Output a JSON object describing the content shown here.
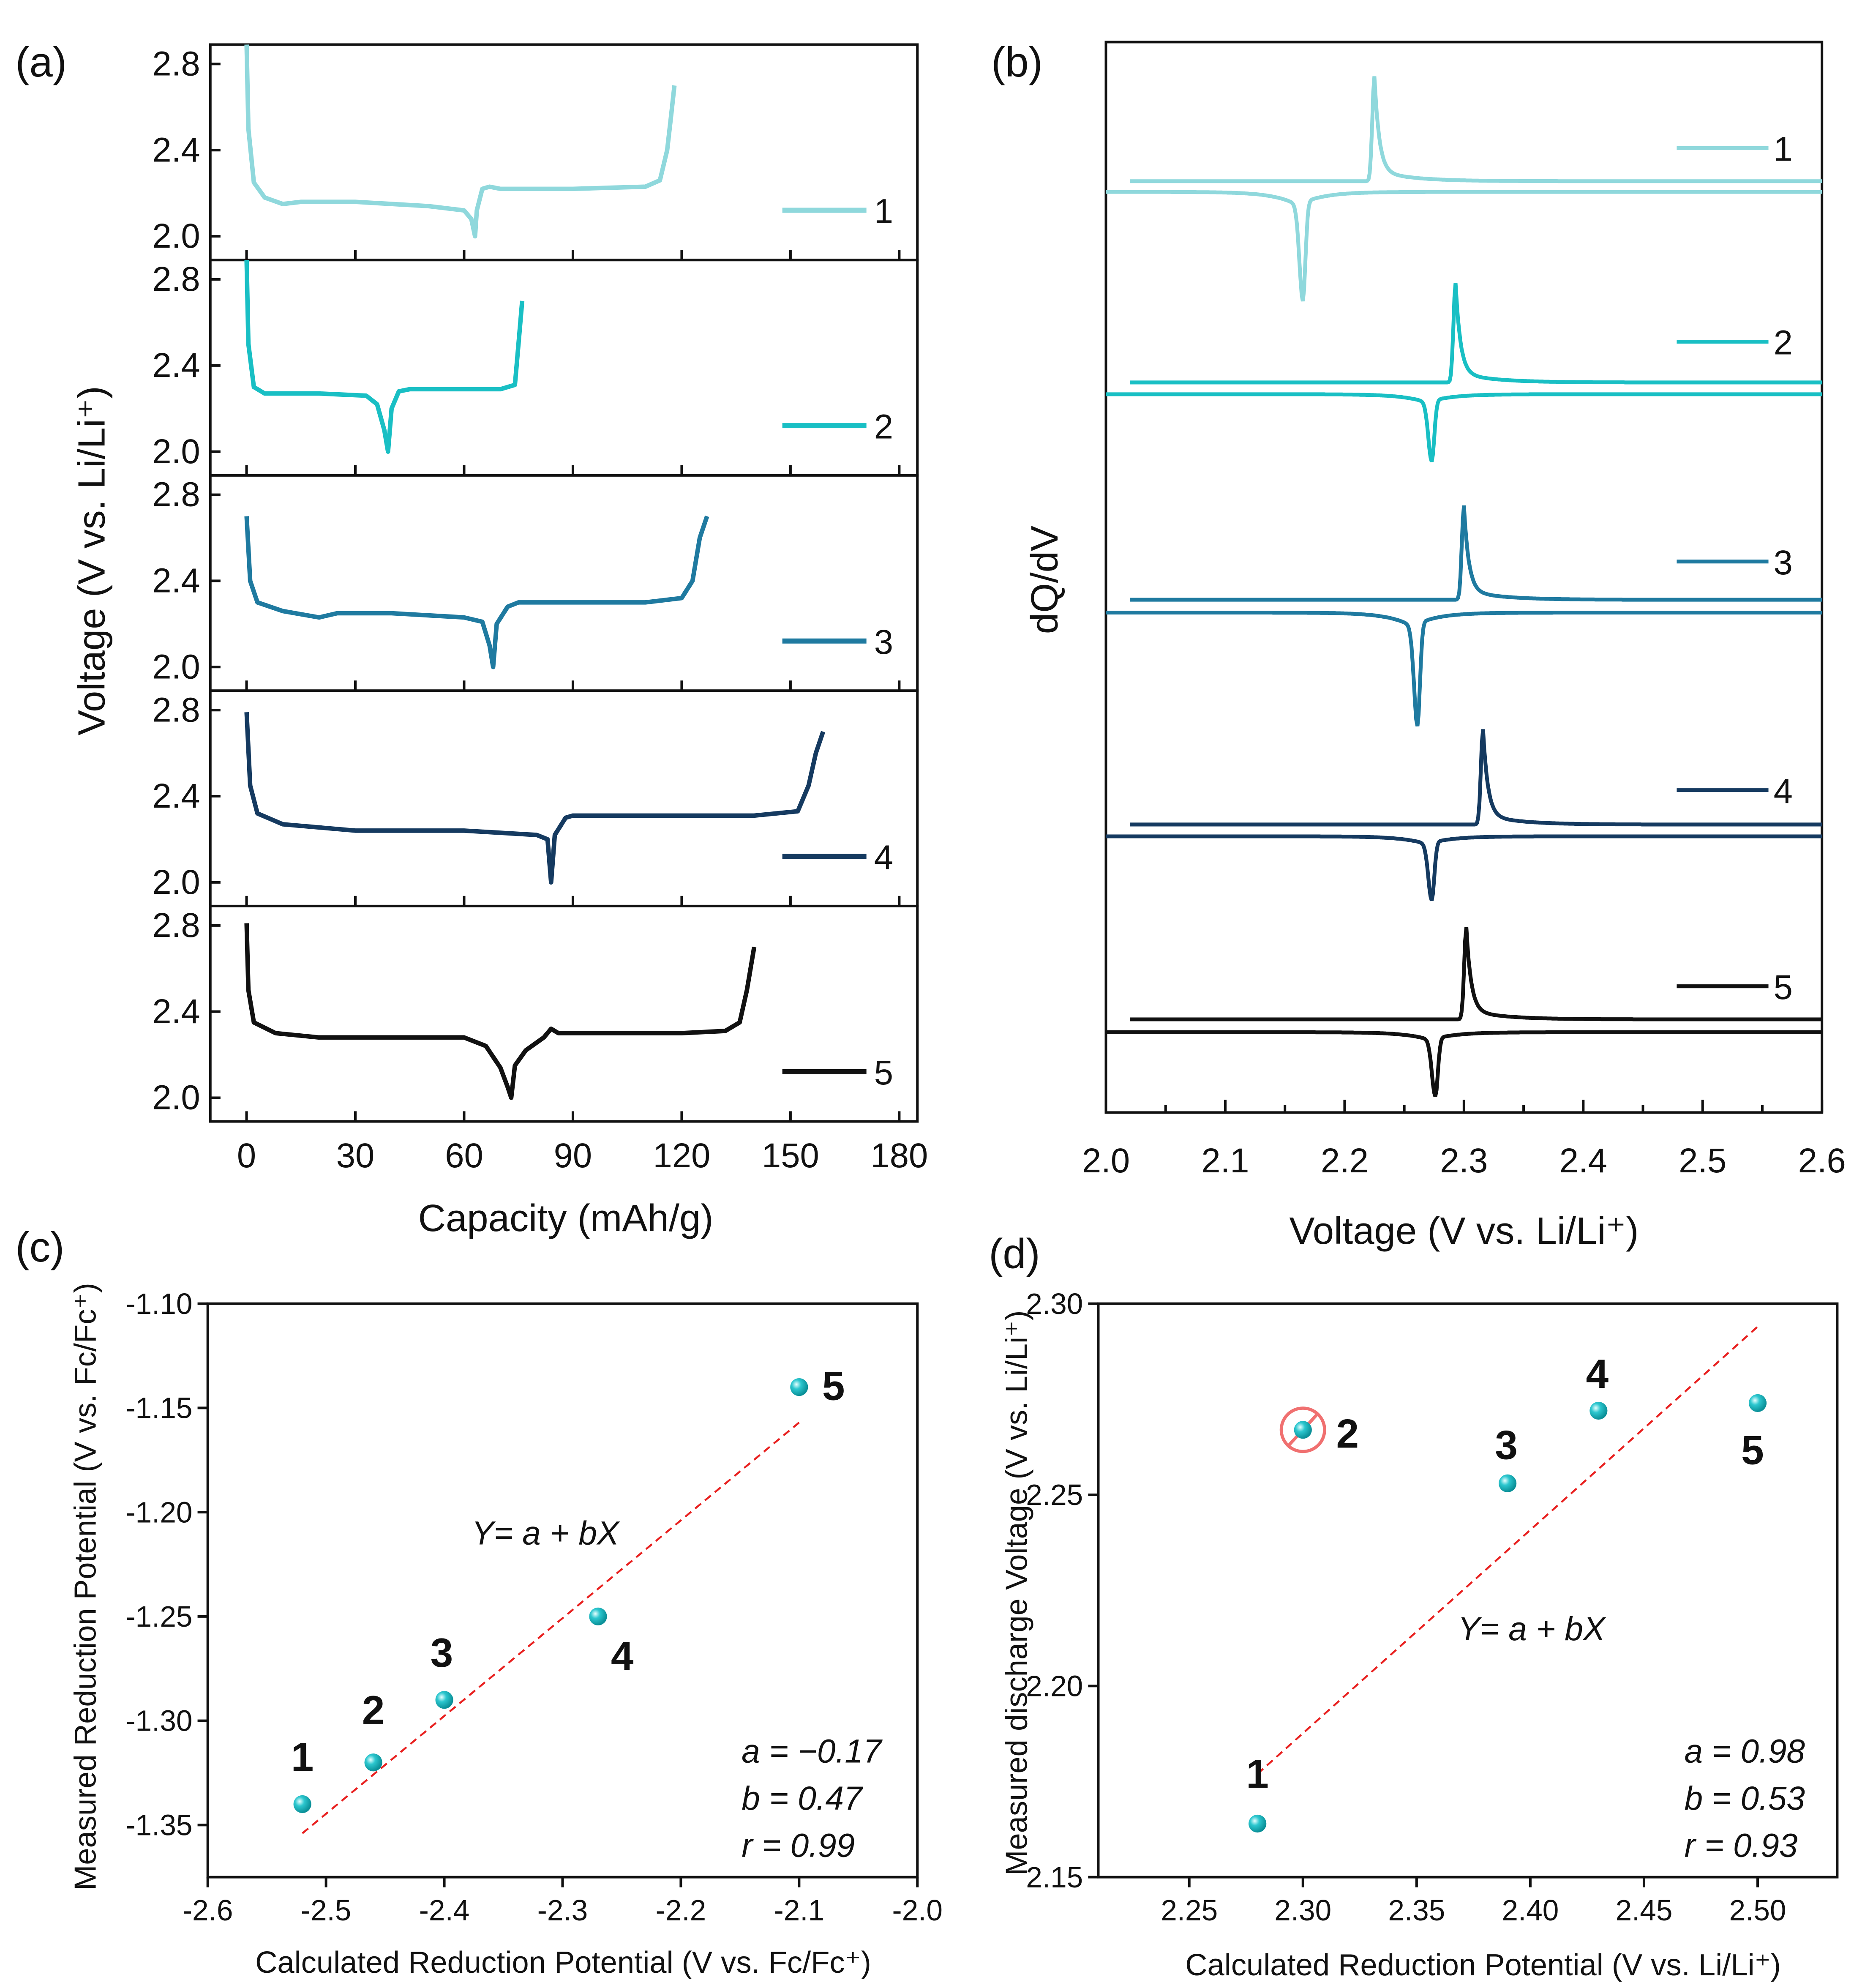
{
  "chart_data": [
    {
      "panel": "(a)",
      "type": "line",
      "xlabel": "Capacity (mAh/g)",
      "ylabel": "Voltage (V vs. Li/Li⁺)",
      "xlim": [
        -10,
        185
      ],
      "ylim": [
        1.89,
        2.89
      ],
      "xticks": [
        0,
        30,
        60,
        90,
        120,
        150,
        180
      ],
      "yticks": [
        2.0,
        2.4,
        2.8
      ],
      "legend_placement": "right",
      "series": [
        {
          "name": "1",
          "color": "#8fd8dc",
          "x": [
            0,
            0.5,
            2,
            5,
            10,
            15,
            30,
            50,
            60,
            62,
            63,
            63.5,
            65,
            67,
            70,
            90,
            110,
            114,
            116,
            117,
            118
          ],
          "y": [
            2.89,
            2.5,
            2.25,
            2.18,
            2.15,
            2.16,
            2.16,
            2.14,
            2.12,
            2.08,
            2.0,
            2.12,
            2.22,
            2.23,
            2.22,
            2.22,
            2.23,
            2.26,
            2.4,
            2.55,
            2.7
          ]
        },
        {
          "name": "2",
          "color": "#19bfc4",
          "x": [
            0,
            0.5,
            2,
            5,
            20,
            33,
            36,
            38,
            39,
            40,
            42,
            45,
            70,
            74,
            75,
            76
          ],
          "y": [
            2.89,
            2.5,
            2.3,
            2.27,
            2.27,
            2.26,
            2.22,
            2.1,
            2.0,
            2.2,
            2.28,
            2.29,
            2.29,
            2.31,
            2.5,
            2.7
          ]
        },
        {
          "name": "3",
          "color": "#1f7aa0",
          "x": [
            0,
            1,
            3,
            10,
            20,
            25,
            40,
            60,
            65,
            67,
            68,
            69,
            72,
            75,
            110,
            120,
            123,
            125,
            127
          ],
          "y": [
            2.7,
            2.4,
            2.3,
            2.26,
            2.23,
            2.25,
            2.25,
            2.23,
            2.21,
            2.1,
            2.0,
            2.2,
            2.28,
            2.3,
            2.3,
            2.32,
            2.4,
            2.6,
            2.7
          ]
        },
        {
          "name": "4",
          "color": "#153a60",
          "x": [
            0,
            1,
            3,
            10,
            30,
            60,
            80,
            83,
            84,
            85,
            88,
            90,
            140,
            152,
            155,
            157,
            159
          ],
          "y": [
            2.79,
            2.45,
            2.32,
            2.27,
            2.24,
            2.24,
            2.22,
            2.2,
            2.0,
            2.22,
            2.3,
            2.31,
            2.31,
            2.33,
            2.45,
            2.6,
            2.7
          ]
        },
        {
          "name": "5",
          "color": "#111111",
          "x": [
            0,
            0.5,
            2,
            8,
            20,
            60,
            66,
            70,
            72,
            73,
            74,
            77,
            82,
            84,
            86,
            120,
            132,
            136,
            138,
            140
          ],
          "y": [
            2.81,
            2.5,
            2.35,
            2.3,
            2.28,
            2.28,
            2.24,
            2.14,
            2.05,
            2.0,
            2.15,
            2.22,
            2.28,
            2.32,
            2.3,
            2.3,
            2.31,
            2.35,
            2.5,
            2.7
          ]
        }
      ]
    },
    {
      "panel": "(b)",
      "type": "line",
      "xlabel": "Voltage (V vs. Li/Li⁺)",
      "ylabel": "dQ/dV",
      "xlim": [
        2.0,
        2.6
      ],
      "ylim": [
        0,
        100
      ],
      "xticks": [
        "2.0",
        "2.1",
        "2.2",
        "2.3",
        "2.4",
        "2.5",
        "2.6"
      ],
      "legend_placement": "right",
      "series": [
        {
          "name": "1",
          "color": "#8fd8dc",
          "charge_baseline": 87.0,
          "charge_peak_x": 2.225,
          "charge_peak_y": 96.8,
          "discharge_baseline": 86.0,
          "discharge_peak_x": 2.165,
          "discharge_peak_y": 75.8
        },
        {
          "name": "2",
          "color": "#19bfc4",
          "charge_baseline": 68.2,
          "charge_peak_x": 2.293,
          "charge_peak_y": 77.5,
          "discharge_baseline": 67.1,
          "discharge_peak_x": 2.273,
          "discharge_peak_y": 60.8
        },
        {
          "name": "3",
          "color": "#1f7aa0",
          "charge_baseline": 47.9,
          "charge_peak_x": 2.3,
          "charge_peak_y": 56.7,
          "discharge_baseline": 46.7,
          "discharge_peak_x": 2.261,
          "discharge_peak_y": 36.1
        },
        {
          "name": "4",
          "color": "#153a60",
          "charge_baseline": 26.9,
          "charge_peak_x": 2.316,
          "charge_peak_y": 35.8,
          "discharge_baseline": 25.8,
          "discharge_peak_x": 2.273,
          "discharge_peak_y": 19.8
        },
        {
          "name": "5",
          "color": "#111111",
          "charge_baseline": 8.7,
          "charge_peak_x": 2.302,
          "charge_peak_y": 17.3,
          "discharge_baseline": 7.5,
          "discharge_peak_x": 2.276,
          "discharge_peak_y": 1.5
        }
      ]
    },
    {
      "panel": "(c)",
      "type": "scatter",
      "xlabel": "Calculated Reduction Potential (V vs. Fc/Fc⁺)",
      "ylabel": "Measured Reduction Potential (V vs. Fc/Fc⁺)",
      "xlim": [
        -2.6,
        -2.0
      ],
      "ylim": [
        -1.375,
        -1.1
      ],
      "xticks": [
        "-2.6",
        "-2.5",
        "-2.4",
        "-2.3",
        "-2.2",
        "-2.1",
        "-2.0"
      ],
      "yticks": [
        "-1.10",
        "-1.15",
        "-1.20",
        "-1.25",
        "-1.30",
        "-1.35"
      ],
      "points": [
        {
          "label": "1",
          "x": -2.52,
          "y": -1.34
        },
        {
          "label": "2",
          "x": -2.46,
          "y": -1.32
        },
        {
          "label": "3",
          "x": -2.4,
          "y": -1.29
        },
        {
          "label": "4",
          "x": -2.27,
          "y": -1.25
        },
        {
          "label": "5",
          "x": -2.1,
          "y": -1.14
        }
      ],
      "point_color": "#19b5bd",
      "fit": {
        "color": "#e8201f",
        "x": [
          -2.52,
          -2.1
        ],
        "y": [
          -1.354,
          -1.157
        ],
        "equation": "Y= a + bX",
        "stats": [
          "a = −0.17",
          "b = 0.47",
          "r = 0.99"
        ]
      }
    },
    {
      "panel": "(d)",
      "type": "scatter",
      "xlabel": "Calculated Reduction Potential (V vs. Li/Li⁺)",
      "ylabel": "Measured discharge Voltage (V vs. Li/Li⁺)",
      "xlim": [
        2.21,
        2.535
      ],
      "ylim": [
        2.15,
        2.3
      ],
      "xticks": [
        "2.25",
        "2.30",
        "2.35",
        "2.40",
        "2.45",
        "2.50"
      ],
      "yticks": [
        "2.15",
        "2.20",
        "2.25",
        "2.30"
      ],
      "points": [
        {
          "label": "1",
          "x": 2.28,
          "y": 2.164
        },
        {
          "label": "2",
          "x": 2.3,
          "y": 2.267,
          "excluded": true
        },
        {
          "label": "3",
          "x": 2.39,
          "y": 2.253
        },
        {
          "label": "4",
          "x": 2.43,
          "y": 2.272
        },
        {
          "label": "5",
          "x": 2.5,
          "y": 2.274
        }
      ],
      "point_color": "#19b5bd",
      "exclusion_color": "#f07070",
      "fit": {
        "color": "#e8201f",
        "x": [
          2.28,
          2.5
        ],
        "y": [
          2.177,
          2.294
        ],
        "equation": "Y= a + bX",
        "stats": [
          "a = 0.98",
          "b = 0.53",
          "r = 0.93"
        ]
      }
    }
  ]
}
